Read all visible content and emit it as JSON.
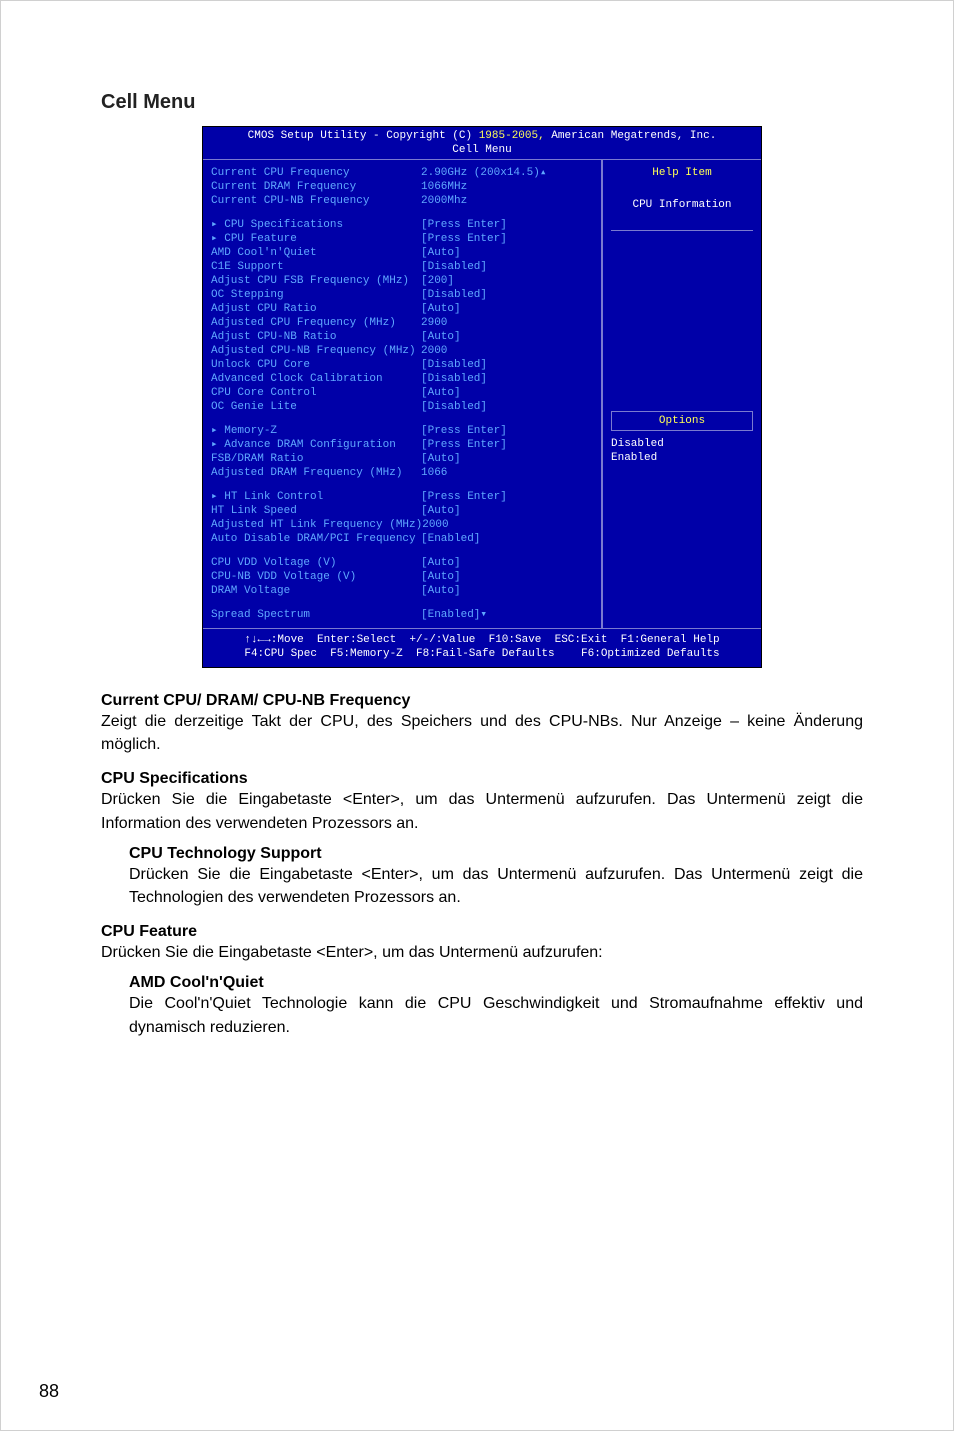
{
  "section_title": "Cell Menu",
  "bios": {
    "header_line": "CMOS Setup Utility - Copyright (C) 1985-2005, American Megatrends, Inc.",
    "header_highlight": "1985-2005,",
    "subtitle": "Cell Menu",
    "help_title": "Help Item",
    "help_sub": "CPU Information",
    "options_title": "Options",
    "options": [
      "Disabled",
      "Enabled"
    ],
    "info_rows": [
      {
        "label": "Current CPU Frequency",
        "value": "2.90GHz (200x14.5)",
        "lcls": "blue",
        "vcls": "blue"
      },
      {
        "label": "Current DRAM Frequency",
        "value": "1066MHz",
        "lcls": "blue",
        "vcls": "blue"
      },
      {
        "label": "Current CPU-NB Frequency",
        "value": "2000Mhz",
        "lcls": "blue",
        "vcls": "blue"
      }
    ],
    "group1": [
      {
        "label": "CPU Specifications",
        "value": "[Press Enter]",
        "arrow": true,
        "lcls": "white",
        "vcls": "yellow"
      },
      {
        "label": "CPU Feature",
        "value": "[Press Enter]",
        "arrow": true,
        "lcls": "white",
        "vcls": "yellow"
      },
      {
        "label": "AMD Cool'n'Quiet",
        "value": "[Auto]",
        "lcls": "blue",
        "vcls": "blue"
      },
      {
        "label": "C1E Support",
        "value": "[Disabled]",
        "lcls": "blue",
        "vcls": "blue"
      },
      {
        "label": "Adjust CPU FSB Frequency (MHz)",
        "value": "[200]",
        "lcls": "blue",
        "vcls": "blue"
      },
      {
        "label": "OC Stepping",
        "value": "[Disabled]",
        "lcls": "blue",
        "vcls": "blue"
      },
      {
        "label": "Adjust CPU Ratio",
        "value": "[Auto]",
        "lcls": "blue",
        "vcls": "blue"
      },
      {
        "label": "Adjusted CPU Frequency (MHz)",
        "value": "2900",
        "lcls": "grey",
        "vcls": "grey"
      },
      {
        "label": "Adjust CPU-NB Ratio",
        "value": "[Auto]",
        "lcls": "blue",
        "vcls": "blue"
      },
      {
        "label": "Adjusted CPU-NB Frequency (MHz)",
        "value": "2000",
        "lcls": "grey",
        "vcls": "grey"
      },
      {
        "label": "Unlock CPU Core",
        "value": "[Disabled]",
        "lcls": "blue",
        "vcls": "blue"
      },
      {
        "label": "Advanced Clock Calibration",
        "value": "[Disabled]",
        "lcls": "blue",
        "vcls": "blue"
      },
      {
        "label": "CPU Core Control",
        "value": "[Auto]",
        "lcls": "blue",
        "vcls": "blue"
      },
      {
        "label": "OC Genie Lite",
        "value": "[Disabled]",
        "lcls": "blue",
        "vcls": "blue"
      }
    ],
    "group2": [
      {
        "label": "Memory-Z",
        "value": "[Press Enter]",
        "arrow": true,
        "lcls": "white",
        "vcls": "yellow"
      },
      {
        "label": "Advance DRAM Configuration",
        "value": "[Press Enter]",
        "arrow": true,
        "lcls": "white",
        "vcls": "yellow"
      },
      {
        "label": "FSB/DRAM Ratio",
        "value": "[Auto]",
        "lcls": "blue",
        "vcls": "blue"
      },
      {
        "label": "Adjusted DRAM Frequency (MHz)",
        "value": "1066",
        "lcls": "grey",
        "vcls": "grey"
      }
    ],
    "group3": [
      {
        "label": "HT Link Control",
        "value": "[Press Enter]",
        "arrow": true,
        "lcls": "white",
        "vcls": "yellow"
      },
      {
        "label": "HT Link Speed",
        "value": "[Auto]",
        "lcls": "blue",
        "vcls": "blue"
      },
      {
        "label": "Adjusted HT Link Frequency (MHz)",
        "value": "2000",
        "lcls": "grey",
        "vcls": "grey"
      },
      {
        "label": "Auto Disable DRAM/PCI Frequency",
        "value": "[Enabled]",
        "lcls": "blue",
        "vcls": "blue"
      }
    ],
    "group4": [
      {
        "label": "CPU VDD Voltage (V)",
        "value": "[Auto]",
        "lcls": "blue",
        "vcls": "blue"
      },
      {
        "label": "CPU-NB VDD Voltage (V)",
        "value": "[Auto]",
        "lcls": "blue",
        "vcls": "blue"
      },
      {
        "label": "DRAM Voltage",
        "value": "[Auto]",
        "lcls": "blue",
        "vcls": "blue"
      }
    ],
    "group5": [
      {
        "label": "Spread Spectrum",
        "value": "[Enabled]",
        "lcls": "blue",
        "vcls": "yellow"
      }
    ],
    "footer1": "↑↓←→:Move  Enter:Select  +/-/:Value  F10:Save  ESC:Exit  F1:General Help",
    "footer2": "F4:CPU Spec  F5:Memory-Z  F8:Fail-Safe Defaults    F6:Optimized Defaults"
  },
  "doc": {
    "t1_title": "Current CPU/ DRAM/ CPU-NB Frequency",
    "t1_body": "Zeigt die derzeitige Takt der CPU, des Speichers und des CPU-NBs. Nur Anzeige – keine Änderung möglich.",
    "t2_title": "CPU Specifications",
    "t2_body": "Drücken Sie die Eingabetaste <Enter>, um das Untermenü aufzurufen. Das Untermenü zeigt die Information des verwendeten Prozessors an.",
    "t2s_title": "CPU Technology Support",
    "t2s_body": "Drücken Sie die Eingabetaste <Enter>, um das Untermenü aufzurufen. Das Untermenü zeigt die Technologien des verwendeten Prozessors an.",
    "t3_title": "CPU Feature",
    "t3_body": "Drücken Sie die Eingabetaste <Enter>, um das Untermenü aufzurufen:",
    "t3s_title": "AMD Cool'n'Quiet",
    "t3s_body": "Die Cool'n'Quiet Technologie kann die CPU Geschwindigkeit und Stromaufnahme effektiv und dynamisch reduzieren."
  },
  "page_number": "88"
}
